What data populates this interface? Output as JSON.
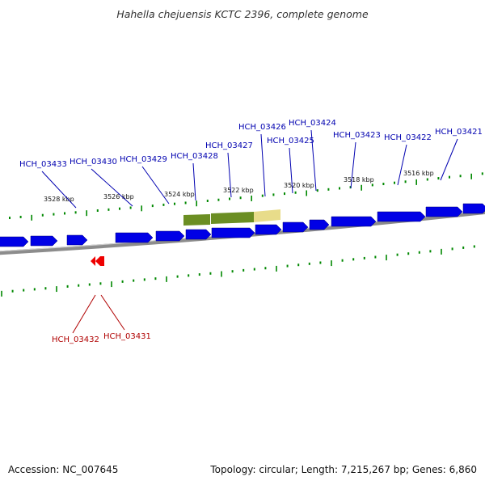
{
  "title": "Hahella chejuensis KCTC 2396, complete genome",
  "footer": {
    "accession": "Accession: NC_007645",
    "summary": "Topology: circular; Length: 7,215,267 bp; Genes: 6,860"
  },
  "colors": {
    "forward_gene": "#0000e6",
    "reverse_gene": "#ee0000",
    "highlight_green": "#6b8e23",
    "highlight_yellow": "#e8dc8a",
    "tick": "#008800",
    "backbone": "#808080",
    "label_blue": "#0000b0",
    "label_red": "#b00000"
  },
  "scale_labels": [
    "3528 kbp",
    "3526 kbp",
    "3524 kbp",
    "3522 kbp",
    "3520 kbp",
    "3518 kbp",
    "3516 kbp"
  ],
  "forward_gene_labels": [
    "HCH_03433",
    "HCH_03430",
    "HCH_03429",
    "HCH_03428",
    "HCH_03427",
    "HCH_03426",
    "HCH_03425",
    "HCH_03424",
    "HCH_03423",
    "HCH_03422",
    "HCH_03421"
  ],
  "reverse_gene_labels": [
    "HCH_03432",
    "HCH_03431"
  ]
}
